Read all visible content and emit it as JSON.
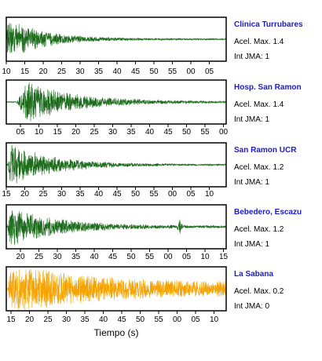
{
  "colors": {
    "trace_default": "#1b6b1b",
    "trace_highlight": "#f5a300",
    "station_name": "#1a1ad6",
    "frame": "#000000"
  },
  "chart_data": {
    "type": "line",
    "xlabel": "Tiempo (s)",
    "panels": [
      {
        "station": "Clinica Turrubares",
        "acel_label": "Acel. Max. 1.4",
        "int_label": "Int JMA: 1",
        "acel_max": 1.4,
        "tick_labels": [
          "10",
          "15",
          "20",
          "25",
          "30",
          "35",
          "40",
          "45",
          "50",
          "55",
          "00",
          "05"
        ],
        "color": "#1b6b1b",
        "envelope": {
          "onset": 0.0,
          "peak": 0.95,
          "rise": 0.005,
          "decay": 0.17,
          "tail": 0.03,
          "seed": 11
        }
      },
      {
        "station": "Hosp. San Ramon",
        "acel_label": "Acel. Max. 1.4",
        "int_label": "Int JMA: 1",
        "acel_max": 1.4,
        "tick_labels": [
          "05",
          "10",
          "15",
          "20",
          "25",
          "30",
          "35",
          "40",
          "45",
          "50",
          "55",
          "00"
        ],
        "color": "#1b6b1b",
        "envelope": {
          "onset": 0.045,
          "peak": 0.95,
          "rise": 0.05,
          "decay": 0.22,
          "tail": 0.04,
          "seed": 23
        }
      },
      {
        "station": "San Ramon UCR",
        "acel_label": "Acel. Max. 1.2",
        "int_label": "Int JMA: 1",
        "acel_max": 1.2,
        "tick_labels": [
          "15",
          "20",
          "25",
          "30",
          "35",
          "40",
          "45",
          "50",
          "55",
          "00",
          "05",
          "10"
        ],
        "color": "#1b6b1b",
        "envelope": {
          "onset": 0.005,
          "peak": 0.95,
          "rise": 0.015,
          "decay": 0.2,
          "tail": 0.03,
          "seed": 37
        }
      },
      {
        "station": "Bebedero, Escazu",
        "acel_label": "Acel. Max. 1.2",
        "int_label": "Int JMA: 1",
        "acel_max": 1.2,
        "tick_labels": [
          "20",
          "25",
          "30",
          "35",
          "40",
          "45",
          "50",
          "55",
          "00",
          "05",
          "10",
          "15"
        ],
        "color": "#1b6b1b",
        "envelope": {
          "onset": 0.005,
          "peak": 0.9,
          "rise": 0.01,
          "decay": 0.22,
          "tail": 0.05,
          "seed": 51,
          "bump_at": 0.79,
          "bump_amp": 0.3
        }
      },
      {
        "station": "La Sabana",
        "acel_label": "Acel. Max. 0.2",
        "int_label": "Int JMA: 0",
        "acel_max": 0.2,
        "tick_labels": [
          "15",
          "20",
          "25",
          "30",
          "35",
          "40",
          "45",
          "50",
          "55",
          "00",
          "05",
          "10"
        ],
        "color": "#f5a300",
        "envelope": {
          "onset": 0.005,
          "peak": 0.95,
          "rise": 0.01,
          "decay": 0.35,
          "tail": 0.3,
          "seed": 67
        }
      }
    ]
  }
}
